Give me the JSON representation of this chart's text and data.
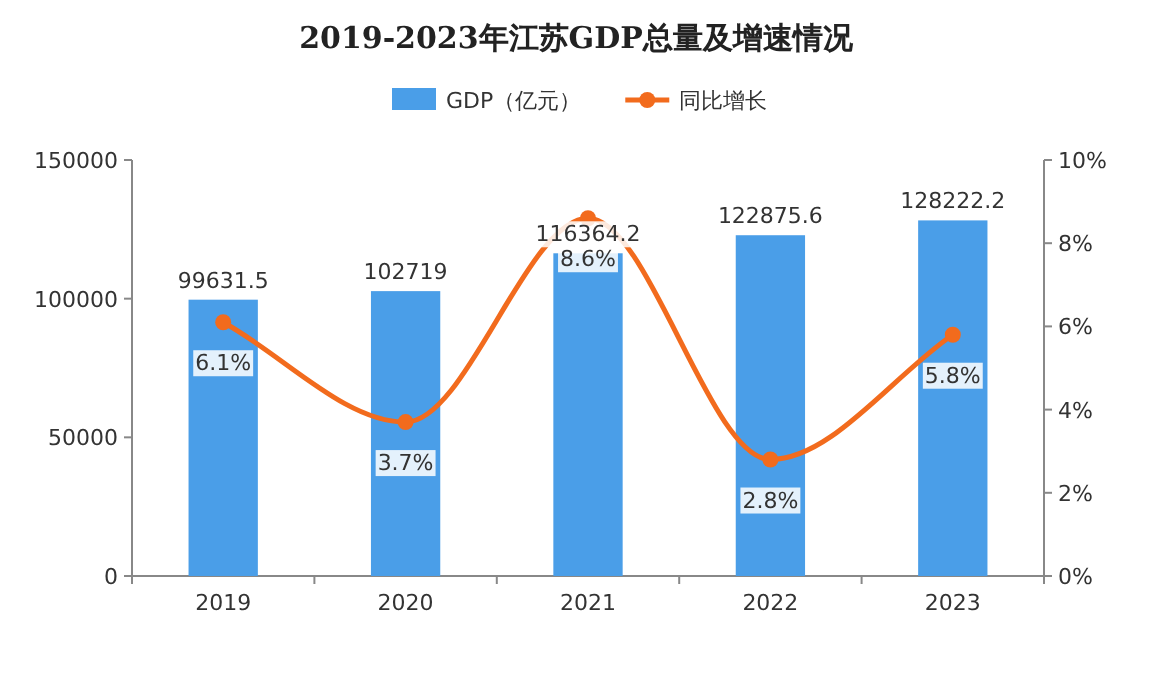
{
  "chart_data": {
    "type": "bar",
    "title": "2019-2023年江苏GDP总量及增速情况",
    "categories": [
      "2019",
      "2020",
      "2021",
      "2022",
      "2023"
    ],
    "series": [
      {
        "name": "GDP（亿元）",
        "color": "#4a9ee8",
        "values": [
          99631.5,
          102719,
          116364.2,
          122875.6,
          128222.2
        ],
        "value_labels": [
          "99631.5",
          "102719",
          "116364.2",
          "122875.6",
          "128222.2"
        ]
      },
      {
        "name": "同比增长",
        "type": "line",
        "axis": "y2",
        "color": "#f26b1d",
        "marker": "circle",
        "values": [
          6.1,
          3.7,
          8.6,
          2.8,
          5.8
        ],
        "value_labels": [
          "6.1%",
          "3.7%",
          "8.6%",
          "2.8%",
          "5.8%"
        ]
      }
    ],
    "ylim": [
      0,
      150000
    ],
    "yticks": [
      0,
      50000,
      100000,
      150000
    ],
    "y2lim": [
      0,
      10
    ],
    "y2ticks": [
      {
        "value": 0,
        "label": "0%"
      },
      {
        "value": 2,
        "label": "2%"
      },
      {
        "value": 4,
        "label": "4%"
      },
      {
        "value": 6,
        "label": "6%"
      },
      {
        "value": 8,
        "label": "8%"
      },
      {
        "value": 10,
        "label": "10%"
      }
    ],
    "legend": "top"
  }
}
